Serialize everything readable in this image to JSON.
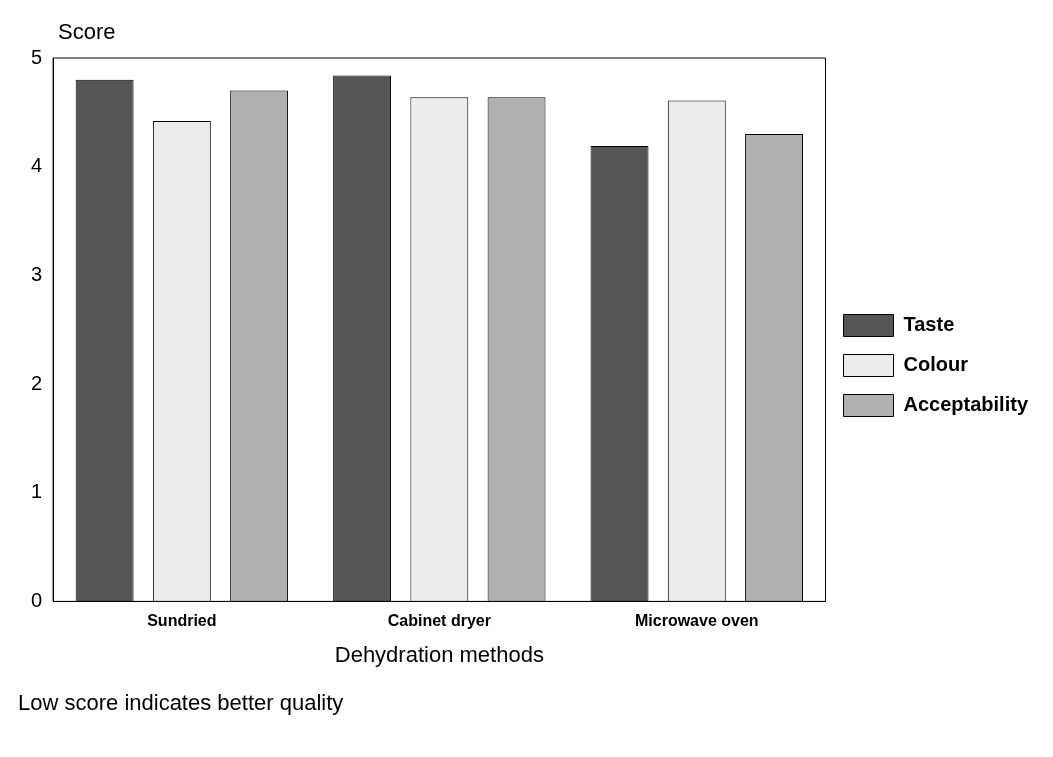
{
  "chart_data": {
    "type": "bar",
    "ylabel": "Score",
    "xlabel": "Dehydration methods",
    "categories": [
      "Sundried",
      "Cabinet dryer",
      "Microwave oven"
    ],
    "series": [
      {
        "name": "Taste",
        "color": "#555555",
        "values": [
          4.8,
          4.84,
          4.19
        ]
      },
      {
        "name": "Colour",
        "color": "#ececec",
        "values": [
          4.42,
          4.64,
          4.61
        ]
      },
      {
        "name": "Acceptability",
        "color": "#b0b0b0",
        "values": [
          4.7,
          4.64,
          4.3
        ]
      }
    ],
    "ylim": [
      0,
      5
    ],
    "yticks": [
      0,
      1,
      2,
      3,
      4,
      5
    ],
    "grid": false,
    "legend": "right",
    "annotations": [
      "Low score indicates better quality"
    ]
  }
}
